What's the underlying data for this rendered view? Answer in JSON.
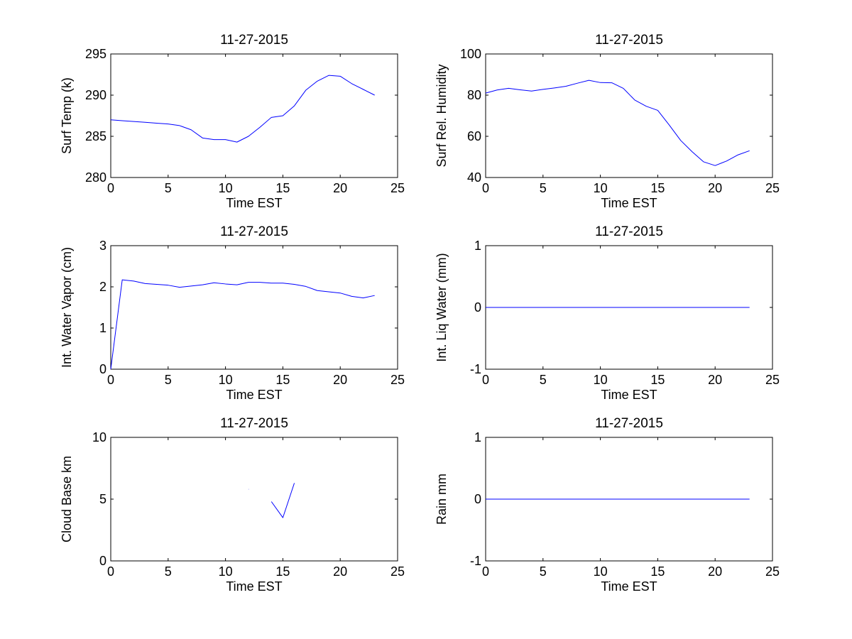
{
  "chart_data": [
    {
      "type": "line",
      "title": "11-27-2015",
      "xlabel": "Time EST",
      "ylabel": "Surf Temp (k)",
      "xlim": [
        0,
        25
      ],
      "ylim": [
        280,
        295
      ],
      "xticks": [
        "0",
        "5",
        "10",
        "15",
        "20",
        "25"
      ],
      "yticks": [
        "280",
        "285",
        "290",
        "295"
      ],
      "grid": false,
      "series": [
        {
          "color": "#0000ff",
          "x": [
            0,
            1,
            2,
            3,
            4,
            5,
            6,
            7,
            8,
            9,
            10,
            11,
            12,
            13,
            14,
            15,
            16,
            17,
            18,
            19,
            20,
            21,
            22,
            23
          ],
          "y": [
            287.0,
            286.9,
            286.8,
            286.7,
            286.6,
            286.5,
            286.3,
            285.8,
            284.8,
            284.6,
            284.6,
            284.3,
            285.0,
            286.1,
            287.3,
            287.5,
            288.7,
            290.6,
            291.7,
            292.4,
            292.3,
            291.4,
            290.7,
            290.0
          ]
        }
      ]
    },
    {
      "type": "line",
      "title": "11-27-2015",
      "xlabel": "Time EST",
      "ylabel": "Surf Rel. Humidity",
      "xlim": [
        0,
        25
      ],
      "ylim": [
        40,
        100
      ],
      "xticks": [
        "0",
        "5",
        "10",
        "15",
        "20",
        "25"
      ],
      "yticks": [
        "40",
        "60",
        "80",
        "100"
      ],
      "grid": false,
      "series": [
        {
          "color": "#0000ff",
          "x": [
            0,
            1,
            2,
            3,
            4,
            5,
            6,
            7,
            8,
            9,
            10,
            11,
            12,
            13,
            14,
            15,
            16,
            17,
            18,
            19,
            20,
            21,
            22,
            23
          ],
          "y": [
            81,
            82.5,
            83.3,
            82.6,
            82,
            82.8,
            83.5,
            84.3,
            85.8,
            87.2,
            86.1,
            86,
            83.3,
            77.6,
            74.6,
            72.6,
            65.5,
            58,
            52.5,
            47.6,
            45.8,
            48,
            51,
            53
          ]
        }
      ]
    },
    {
      "type": "line",
      "title": "11-27-2015",
      "xlabel": "Time EST",
      "ylabel": "Int. Water Vapor (cm)",
      "xlim": [
        0,
        25
      ],
      "ylim": [
        0,
        3
      ],
      "xticks": [
        "0",
        "5",
        "10",
        "15",
        "20",
        "25"
      ],
      "yticks": [
        "0",
        "1",
        "2",
        "3"
      ],
      "grid": false,
      "series": [
        {
          "color": "#0000ff",
          "x": [
            0,
            1,
            2,
            3,
            4,
            5,
            6,
            7,
            8,
            9,
            10,
            11,
            12,
            13,
            14,
            15,
            16,
            17,
            18,
            19,
            20,
            21,
            22,
            23
          ],
          "y": [
            0.0,
            2.17,
            2.14,
            2.08,
            2.06,
            2.04,
            1.99,
            2.02,
            2.05,
            2.1,
            2.07,
            2.05,
            2.11,
            2.11,
            2.09,
            2.09,
            2.06,
            2.01,
            1.91,
            1.88,
            1.85,
            1.77,
            1.73,
            1.79
          ]
        }
      ]
    },
    {
      "type": "line",
      "title": "11-27-2015",
      "xlabel": "Time EST",
      "ylabel": "Int. Liq Water (mm)",
      "xlim": [
        0,
        25
      ],
      "ylim": [
        -1,
        1
      ],
      "xticks": [
        "0",
        "5",
        "10",
        "15",
        "20",
        "25"
      ],
      "yticks": [
        "-1",
        "0",
        "1"
      ],
      "grid": false,
      "series": [
        {
          "color": "#0000ff",
          "x": [
            0,
            23
          ],
          "y": [
            0,
            0
          ]
        }
      ]
    },
    {
      "type": "line",
      "title": "11-27-2015",
      "xlabel": "Time EST",
      "ylabel": "Cloud Base km",
      "xlim": [
        0,
        25
      ],
      "ylim": [
        0,
        10
      ],
      "xticks": [
        "0",
        "5",
        "10",
        "15",
        "20",
        "25"
      ],
      "yticks": [
        "0",
        "5",
        "10"
      ],
      "grid": false,
      "series": [
        {
          "color": "#0000ff",
          "x": [
            12,
            12.02
          ],
          "y": [
            5.8,
            5.8
          ]
        },
        {
          "color": "#0000ff",
          "x": [
            14,
            15,
            16
          ],
          "y": [
            4.8,
            3.5,
            6.3
          ]
        }
      ]
    },
    {
      "type": "line",
      "title": "11-27-2015",
      "xlabel": "Time EST",
      "ylabel": "Rain mm",
      "xlim": [
        0,
        25
      ],
      "ylim": [
        -1,
        1
      ],
      "xticks": [
        "0",
        "5",
        "10",
        "15",
        "20",
        "25"
      ],
      "yticks": [
        "-1",
        "0",
        "1"
      ],
      "grid": false,
      "series": [
        {
          "color": "#0000ff",
          "x": [
            0,
            23
          ],
          "y": [
            0,
            0
          ]
        }
      ]
    }
  ]
}
